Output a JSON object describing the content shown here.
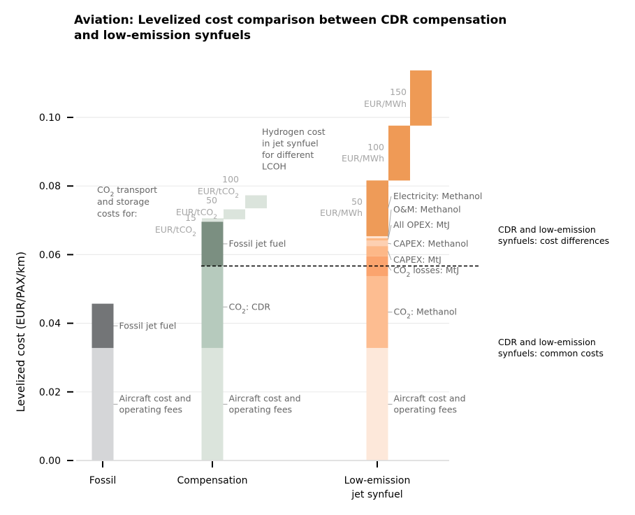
{
  "title_lines": [
    "Aviation: Levelized cost comparison between CDR compensation",
    "and low-emission synfuels"
  ],
  "chart_data": {
    "type": "bar",
    "title": "Aviation: Levelized cost comparison between CDR compensation and low-emission synfuels",
    "ylabel": "Levelized cost (EUR/PAX/km)",
    "ylim": [
      0,
      0.115
    ],
    "yticks": [
      0.0,
      0.02,
      0.04,
      0.06,
      0.08,
      0.1
    ],
    "ytick_labels": [
      "0.00",
      "0.02",
      "0.04",
      "0.06",
      "0.08",
      "0.10"
    ],
    "categories": [
      "Fossil",
      "Compensation",
      "Low-emission\njet synfuel"
    ],
    "grid": true,
    "reference_line": {
      "y": 0.0567,
      "style": "dashed"
    },
    "stacks": [
      {
        "category": "Fossil",
        "segments": [
          {
            "name": "Aircraft cost and\noperating fees",
            "base": 0.0,
            "value": 0.0328,
            "color": "#d5d6d8"
          },
          {
            "name": "Fossil jet fuel",
            "base": 0.0328,
            "value": 0.0129,
            "color": "#737577"
          }
        ]
      },
      {
        "category": "Compensation",
        "segments": [
          {
            "name": "Aircraft cost and\noperating fees",
            "base": 0.0,
            "value": 0.0328,
            "color": "#dbe4dc"
          },
          {
            "name": "CO$_2$: CDR",
            "base": 0.0328,
            "value": 0.0239,
            "color": "#b6cabd"
          },
          {
            "name": "Fossil jet fuel",
            "base": 0.0567,
            "value": 0.0129,
            "color": "#7b8f81"
          }
        ]
      },
      {
        "category": "Low-emission\njet synfuel",
        "segments": [
          {
            "name": "Aircraft cost and\noperating fees",
            "base": 0.0,
            "value": 0.0328,
            "color": "#fde8da"
          },
          {
            "name": "CO$_2$: Methanol",
            "base": 0.0328,
            "value": 0.0209,
            "color": "#fdbd91"
          },
          {
            "name": "CO$_2$ losses: MtJ",
            "base": 0.0537,
            "value": 0.0058,
            "color": "#fba46e"
          },
          {
            "name": "CAPEX: MtJ",
            "base": 0.0595,
            "value": 0.003,
            "color": "#fdb888"
          },
          {
            "name": "CAPEX: Methanol",
            "base": 0.0625,
            "value": 0.0016,
            "color": "#fdd0b2"
          },
          {
            "name": "All OPEX: MtJ",
            "base": 0.0641,
            "value": 0.0007,
            "color": "#fdb985"
          },
          {
            "name": "O&M: Methanol",
            "base": 0.0648,
            "value": 0.0006,
            "color": "#ffe3cf"
          },
          {
            "name": "Electricity: Methanol",
            "base": 0.0654,
            "value": 0.0162,
            "color": "#ee9b58"
          }
        ]
      }
    ],
    "co2_transport_variants": [
      {
        "value_label": "15",
        "unit": "EUR/tCO$_2$",
        "bottom": 0.0697,
        "top": 0.0706
      },
      {
        "value_label": "50",
        "unit": "EUR/tCO$_2$",
        "bottom": 0.0703,
        "top": 0.0732
      },
      {
        "value_label": "100",
        "unit": "EUR/tCO$_2$",
        "bottom": 0.0735,
        "top": 0.0773
      }
    ],
    "hydrogen_variants": [
      {
        "value_label": "50",
        "unit": "EUR/MWh",
        "bottom": 0.0654,
        "top": 0.0816
      },
      {
        "value_label": "100",
        "unit": "EUR/MWh",
        "bottom": 0.0816,
        "top": 0.0976
      },
      {
        "value_label": "150",
        "unit": "EUR/MWh",
        "bottom": 0.0976,
        "top": 0.1137
      }
    ]
  },
  "annotations": {
    "co2_transport_note": [
      "CO$_2$ transport",
      "and storage",
      "costs for:"
    ],
    "hydrogen_note": [
      "Hydrogen cost",
      "in jet synfuel",
      "for different",
      "LCOH"
    ],
    "side_cost_differences": [
      "CDR and low-emission",
      "synfuels: cost differences"
    ],
    "side_common_costs": [
      "CDR and low-emission",
      "synfuels: common costs"
    ]
  },
  "colors": {
    "grid": "#ebebeb",
    "label_grey": "#666666",
    "variant_grey": "#a6a6a6",
    "transport_variant_fill": "#dbe4dc"
  }
}
